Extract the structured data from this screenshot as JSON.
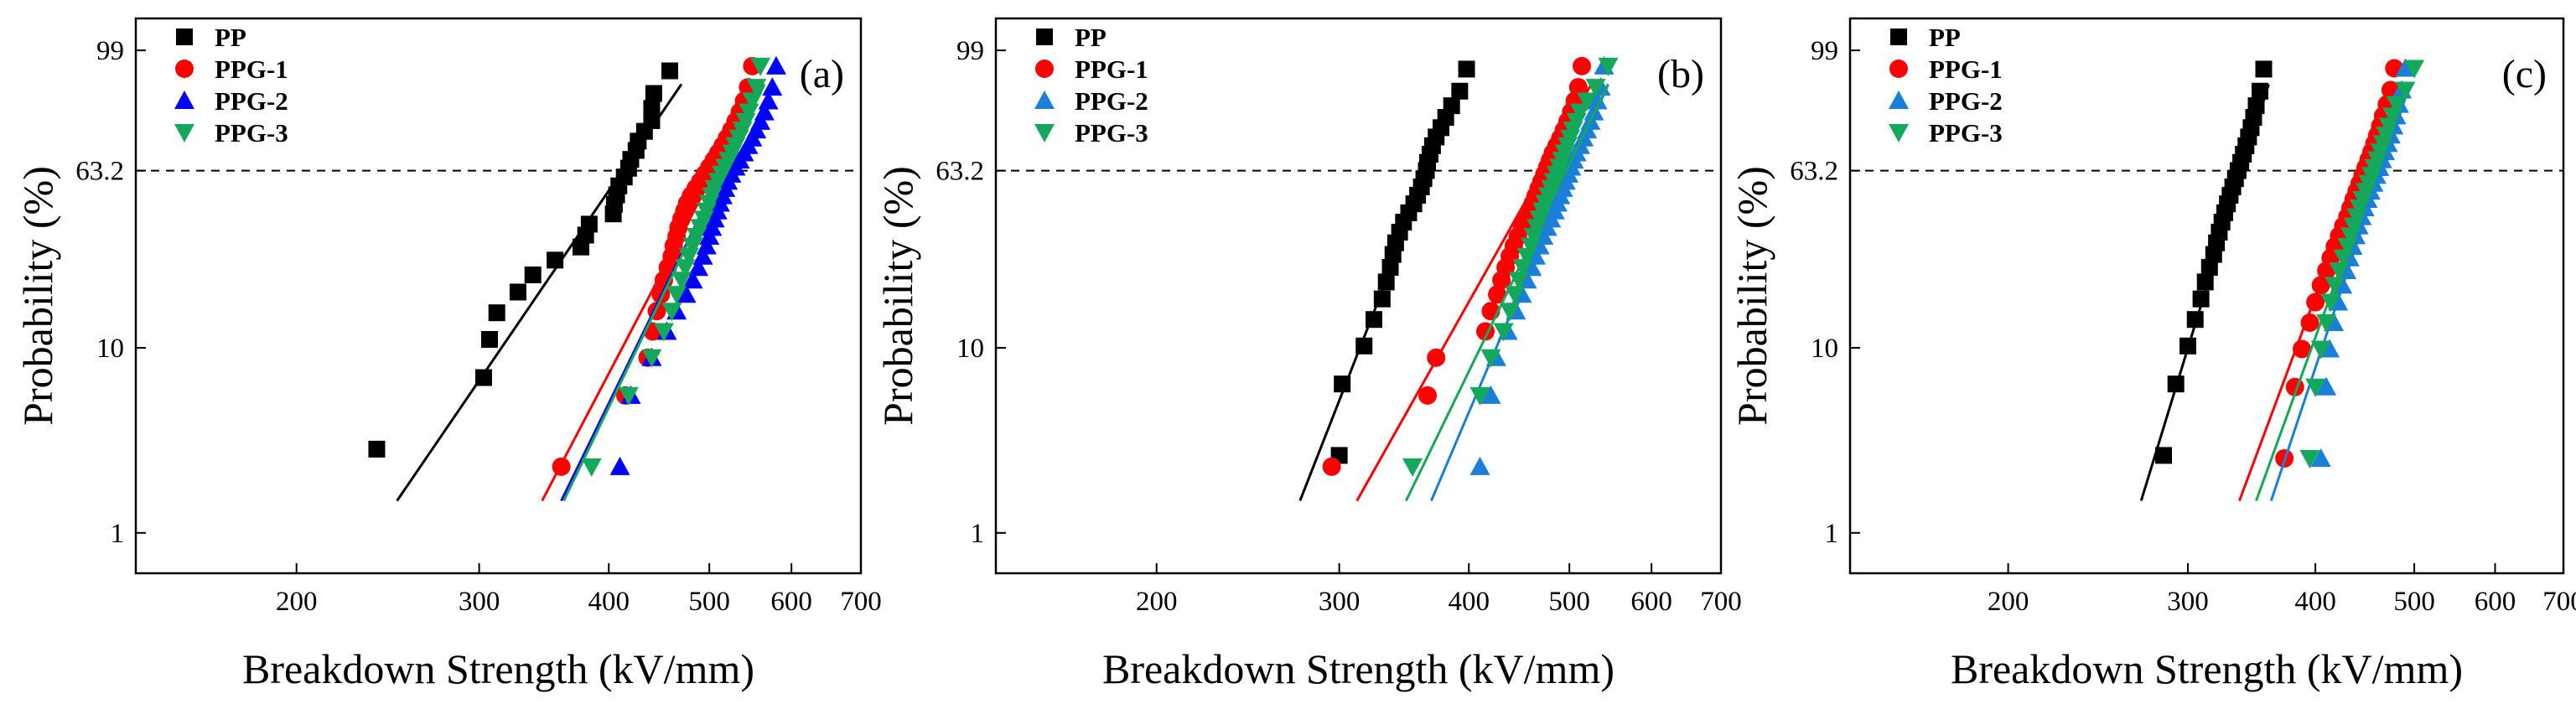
{
  "figure": {
    "colors": {
      "PP": "#000000",
      "PPG-1": "#ff0000",
      "PPG-2-a": "#0000ff",
      "PPG-2": "#1a7fd8",
      "PPG-3": "#14a85a"
    }
  },
  "chart_data": [
    {
      "type": "scatter",
      "panel_label": "(a)",
      "xscale": "log",
      "yscale": "weibull",
      "xlabel": "Breakdown Strength (kV/mm)",
      "ylabel": "Probability (%)",
      "xlim": [
        140,
        700
      ],
      "ylim": [
        0.6,
        99.9
      ],
      "xticks": [
        200,
        300,
        400,
        500,
        600,
        700
      ],
      "xtick_labels": [
        "200",
        "300",
        "400",
        "500",
        "600",
        "700"
      ],
      "yticks": [
        1,
        10,
        63.2,
        99
      ],
      "ytick_labels": [
        "1",
        "10",
        "63.2",
        "99"
      ],
      "reference_line": {
        "y": 63.2,
        "style": "dashed"
      },
      "legend": {
        "position": "top-left",
        "entries": [
          "PP",
          "PPG-1",
          "PPG-2",
          "PPG-3"
        ]
      },
      "series": [
        {
          "name": "PP",
          "color": "#000000",
          "marker": "square",
          "values": [
            239,
            303,
            307,
            312,
            327,
            338,
            355,
            376,
            380,
            383,
            404,
            405,
            407,
            409,
            414,
            418,
            420,
            425,
            427,
            433,
            440,
            440,
            442,
            458
          ],
          "fit": {
            "x": [
              250,
              470
            ],
            "y": [
              1.5,
              95
            ]
          }
        },
        {
          "name": "PPG-1",
          "color": "#ff0000",
          "marker": "circle",
          "values": [
            360,
            415,
            436,
            441,
            445,
            449,
            452,
            456,
            460,
            462,
            465,
            467,
            470,
            473,
            476,
            480,
            485,
            490,
            495,
            500,
            505,
            510,
            515,
            520,
            525,
            530,
            535,
            540,
            545,
            550
          ],
          "fit": {
            "x": [
              345,
              560
            ],
            "y": [
              1.5,
              95
            ]
          }
        },
        {
          "name": "PPG-2",
          "color": "#0000ff",
          "marker": "triangle-up",
          "values": [
            410,
            420,
            440,
            455,
            465,
            475,
            482,
            488,
            493,
            497,
            500,
            503,
            506,
            509,
            512,
            515,
            518,
            521,
            525,
            530,
            535,
            540,
            545,
            550,
            555,
            560,
            565,
            570,
            575,
            580
          ],
          "fit": {
            "x": [
              360,
              565
            ],
            "y": [
              1.5,
              95
            ]
          }
        },
        {
          "name": "PPG-3",
          "color": "#14a85a",
          "marker": "triangle-down",
          "values": [
            385,
            418,
            440,
            452,
            460,
            465,
            470,
            474,
            478,
            482,
            486,
            490,
            494,
            497,
            500,
            503,
            506,
            510,
            514,
            518,
            522,
            526,
            530,
            534,
            538,
            542,
            546,
            550,
            555,
            560
          ],
          "fit": {
            "x": [
              362,
              565
            ],
            "y": [
              1.5,
              95
            ]
          }
        }
      ]
    },
    {
      "type": "scatter",
      "panel_label": "(b)",
      "xscale": "log",
      "yscale": "weibull",
      "xlabel": "Breakdown Strength (kV/mm)",
      "ylabel": "Probability (%)",
      "xlim": [
        140,
        700
      ],
      "ylim": [
        0.6,
        99.9
      ],
      "xticks": [
        200,
        300,
        400,
        500,
        600,
        700
      ],
      "xtick_labels": [
        "200",
        "300",
        "400",
        "500",
        "600",
        "700"
      ],
      "yticks": [
        1,
        10,
        63.2,
        99
      ],
      "ytick_labels": [
        "1",
        "10",
        "63.2",
        "99"
      ],
      "reference_line": {
        "y": 63.2,
        "style": "dashed"
      },
      "legend": {
        "position": "top-left",
        "entries": [
          "PP",
          "PPG-1",
          "PPG-2",
          "PPG-3"
        ]
      },
      "series": [
        {
          "name": "PP",
          "color": "#000000",
          "marker": "square",
          "values": [
            300,
            302,
            317,
            324,
            330,
            333,
            336,
            338,
            340,
            343,
            346,
            350,
            354,
            357,
            360,
            362,
            364,
            365,
            367,
            369,
            372,
            376,
            380,
            385,
            392,
            398
          ],
          "fit": {
            "x": [
              275,
              395
            ],
            "y": [
              1.5,
              95
            ]
          }
        },
        {
          "name": "PPG-1",
          "color": "#ff0000",
          "marker": "circle",
          "values": [
            295,
            365,
            372,
            415,
            420,
            426,
            430,
            434,
            438,
            442,
            446,
            450,
            454,
            458,
            461,
            464,
            467,
            470,
            473,
            476,
            479,
            482,
            486,
            490,
            494,
            498,
            502,
            506,
            510,
            514
          ],
          "fit": {
            "x": [
              312,
              525
            ],
            "y": [
              1.5,
              95
            ]
          }
        },
        {
          "name": "PPG-2",
          "color": "#1a7fd8",
          "marker": "triangle-up",
          "values": [
            410,
            420,
            425,
            436,
            444,
            450,
            455,
            460,
            464,
            468,
            472,
            476,
            480,
            484,
            487,
            490,
            493,
            496,
            499,
            502,
            505,
            508,
            512,
            516,
            520,
            524,
            528,
            532,
            536,
            540
          ],
          "fit": {
            "x": [
              368,
              545
            ],
            "y": [
              1.5,
              95
            ]
          }
        },
        {
          "name": "PPG-3",
          "color": "#14a85a",
          "marker": "triangle-down",
          "values": [
            353,
            410,
            420,
            432,
            438,
            443,
            447,
            451,
            455,
            459,
            462,
            465,
            468,
            471,
            474,
            477,
            480,
            483,
            486,
            489,
            492,
            495,
            498,
            501,
            504,
            508,
            512,
            520,
            530,
            545
          ],
          "fit": {
            "x": [
              348,
              545
            ],
            "y": [
              1.5,
              95
            ]
          }
        }
      ]
    },
    {
      "type": "scatter",
      "panel_label": "(c)",
      "xscale": "log",
      "yscale": "weibull",
      "xlabel": "Breakdown Strength (kV/mm)",
      "ylabel": "Probability (%)",
      "xlim": [
        140,
        700
      ],
      "ylim": [
        0.6,
        99.9
      ],
      "xticks": [
        200,
        300,
        400,
        500,
        600,
        700
      ],
      "xtick_labels": [
        "200",
        "300",
        "400",
        "500",
        "600",
        "700"
      ],
      "yticks": [
        1,
        10,
        63.2,
        99
      ],
      "ytick_labels": [
        "1",
        "10",
        "63.2",
        "99"
      ],
      "reference_line": {
        "y": 63.2,
        "style": "dashed"
      },
      "legend": {
        "position": "top-left",
        "entries": [
          "PP",
          "PPG-1",
          "PPG-2",
          "PPG-3"
        ]
      },
      "series": [
        {
          "name": "PP",
          "color": "#000000",
          "marker": "square",
          "values": [
            284,
            292,
            300,
            305,
            309,
            312,
            315,
            318,
            320,
            322,
            324,
            326,
            328,
            330,
            332,
            334,
            336,
            338,
            340,
            342,
            344,
            346,
            348,
            350,
            353,
            356
          ],
          "fit": {
            "x": [
              270,
              360
            ],
            "y": [
              1.5,
              95
            ]
          }
        },
        {
          "name": "PPG-1",
          "color": "#ff0000",
          "marker": "circle",
          "values": [
            373,
            382,
            388,
            395,
            400,
            405,
            410,
            414,
            418,
            422,
            426,
            430,
            433,
            436,
            439,
            442,
            445,
            448,
            451,
            454,
            457,
            460,
            463,
            466,
            470,
            474,
            478
          ],
          "fit": {
            "x": [
              337,
              478
            ],
            "y": [
              1.5,
              95
            ]
          }
        },
        {
          "name": "PPG-2",
          "color": "#1a7fd8",
          "marker": "triangle-up",
          "values": [
            405,
            410,
            413,
            417,
            421,
            425,
            429,
            432,
            435,
            438,
            441,
            444,
            447,
            450,
            453,
            456,
            459,
            462,
            465,
            468,
            471,
            474,
            477,
            480,
            483,
            486,
            490
          ],
          "fit": {
            "x": [
              362,
              495
            ],
            "y": [
              1.5,
              95
            ]
          }
        },
        {
          "name": "PPG-3",
          "color": "#14a85a",
          "marker": "triangle-down",
          "values": [
            395,
            400,
            405,
            410,
            414,
            418,
            422,
            426,
            430,
            433,
            436,
            439,
            442,
            445,
            448,
            451,
            454,
            457,
            460,
            463,
            466,
            469,
            472,
            476,
            480,
            490,
            500
          ],
          "fit": {
            "x": [
              350,
              492
            ],
            "y": [
              1.5,
              95
            ]
          }
        }
      ]
    }
  ]
}
